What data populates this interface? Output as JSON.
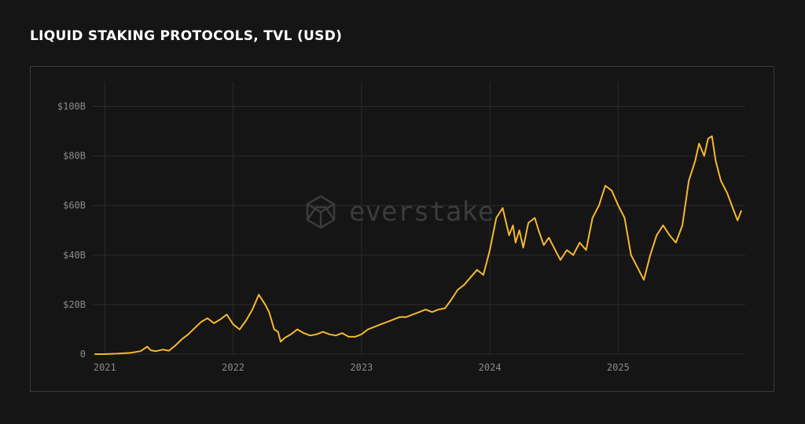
{
  "chart_data": {
    "type": "line",
    "title": "LIQUID STAKING PROTOCOLS, TVL (USD)",
    "watermark": "everstake",
    "xlabel": "",
    "ylabel": "",
    "y_unit": "USD billions",
    "ylim": [
      0,
      110
    ],
    "yticks": [
      0,
      20,
      40,
      60,
      80,
      100
    ],
    "ytick_labels": [
      "0",
      "$20B",
      "$40B",
      "$60B",
      "$80B",
      "$100B"
    ],
    "xlim": [
      2020.9,
      2025.99
    ],
    "xticks": [
      2021,
      2022,
      2023,
      2024,
      2025
    ],
    "xtick_labels": [
      "2021",
      "2022",
      "2023",
      "2024",
      "2025"
    ],
    "grid": true,
    "line_color": "#f5b82e",
    "series": [
      {
        "x": [
          2020.92,
          2021.0,
          2021.1,
          2021.2,
          2021.28,
          2021.33,
          2021.36,
          2021.4,
          2021.45,
          2021.5,
          2021.55,
          2021.6,
          2021.65,
          2021.7,
          2021.75,
          2021.8,
          2021.85,
          2021.9,
          2021.95,
          2022.0,
          2022.05,
          2022.1,
          2022.15,
          2022.2,
          2022.25,
          2022.28,
          2022.32,
          2022.35,
          2022.37,
          2022.4,
          2022.45,
          2022.5,
          2022.55,
          2022.6,
          2022.65,
          2022.7,
          2022.75,
          2022.8,
          2022.85,
          2022.9,
          2022.95,
          2023.0,
          2023.05,
          2023.1,
          2023.15,
          2023.2,
          2023.25,
          2023.3,
          2023.35,
          2023.4,
          2023.45,
          2023.5,
          2023.55,
          2023.6,
          2023.65,
          2023.7,
          2023.75,
          2023.8,
          2023.85,
          2023.9,
          2023.95,
          2024.0,
          2024.05,
          2024.1,
          2024.15,
          2024.18,
          2024.2,
          2024.23,
          2024.26,
          2024.3,
          2024.35,
          2024.38,
          2024.42,
          2024.46,
          2024.5,
          2024.55,
          2024.6,
          2024.65,
          2024.7,
          2024.75,
          2024.8,
          2024.85,
          2024.9,
          2024.95,
          2025.0,
          2025.05,
          2025.1,
          2025.15,
          2025.2,
          2025.25,
          2025.3,
          2025.35,
          2025.4,
          2025.45,
          2025.5,
          2025.55,
          2025.6,
          2025.63,
          2025.67,
          2025.7,
          2025.73,
          2025.76,
          2025.8,
          2025.85,
          2025.9,
          2025.93,
          2025.96
        ],
        "y": [
          0,
          0,
          0.2,
          0.5,
          1.2,
          3.0,
          1.5,
          1.2,
          1.8,
          1.4,
          3.5,
          6.0,
          8.0,
          10.5,
          13.0,
          14.5,
          12.5,
          14.0,
          16.0,
          12.0,
          10.0,
          13.5,
          18.0,
          24.0,
          20.0,
          17.0,
          10.0,
          9.0,
          5.0,
          6.5,
          8.0,
          10.0,
          8.5,
          7.5,
          8.0,
          9.0,
          8.0,
          7.5,
          8.5,
          7.0,
          7.0,
          8.0,
          10.0,
          11.0,
          12.0,
          13.0,
          14.0,
          15.0,
          15.0,
          16.0,
          17.0,
          18.0,
          17.0,
          18.0,
          18.5,
          22.0,
          26.0,
          28.0,
          31.0,
          34.0,
          32.0,
          42.0,
          55.0,
          59.0,
          48.0,
          52.0,
          45.0,
          50.0,
          43.0,
          53.0,
          55.0,
          50.0,
          44.0,
          47.0,
          43.0,
          38.0,
          42.0,
          40.0,
          45.0,
          42.0,
          55.0,
          60.0,
          68.0,
          66.0,
          60.0,
          55.0,
          40.0,
          35.0,
          30.0,
          40.0,
          48.0,
          52.0,
          48.0,
          45.0,
          52.0,
          70.0,
          78.0,
          85.0,
          80.0,
          87.0,
          88.0,
          78.0,
          70.0,
          65.0,
          58.0,
          54.0,
          58.0
        ]
      }
    ]
  }
}
